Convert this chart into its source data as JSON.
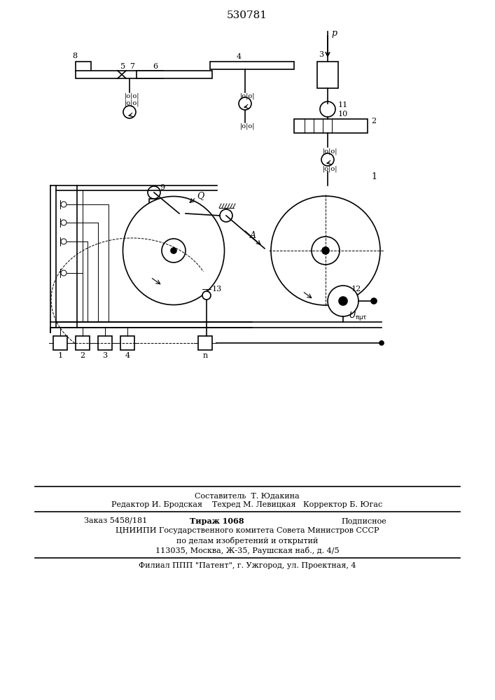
{
  "title": "530781",
  "title_fontsize": 11,
  "bg_color": "#ffffff",
  "line_color": "#000000",
  "line_width": 1.2,
  "thin_line": 0.7,
  "footer_lines": [
    "Составитель  Т. Юдакина",
    "Редактор И. Бродская    Техред М. Левицкая   Корректор Б. Югас",
    "Заказ 5458/181          Тираж 1068            Подписное",
    "ЦНИИПИ Государственного комитета Совета Министров СССР",
    "по делам изобретений и открытий",
    "113035, Москва, Ж-35, Раушская наб., д. 4/5",
    "Филиал ППП \"Патент\", г. Ужгород, ул. Проектная, 4"
  ]
}
